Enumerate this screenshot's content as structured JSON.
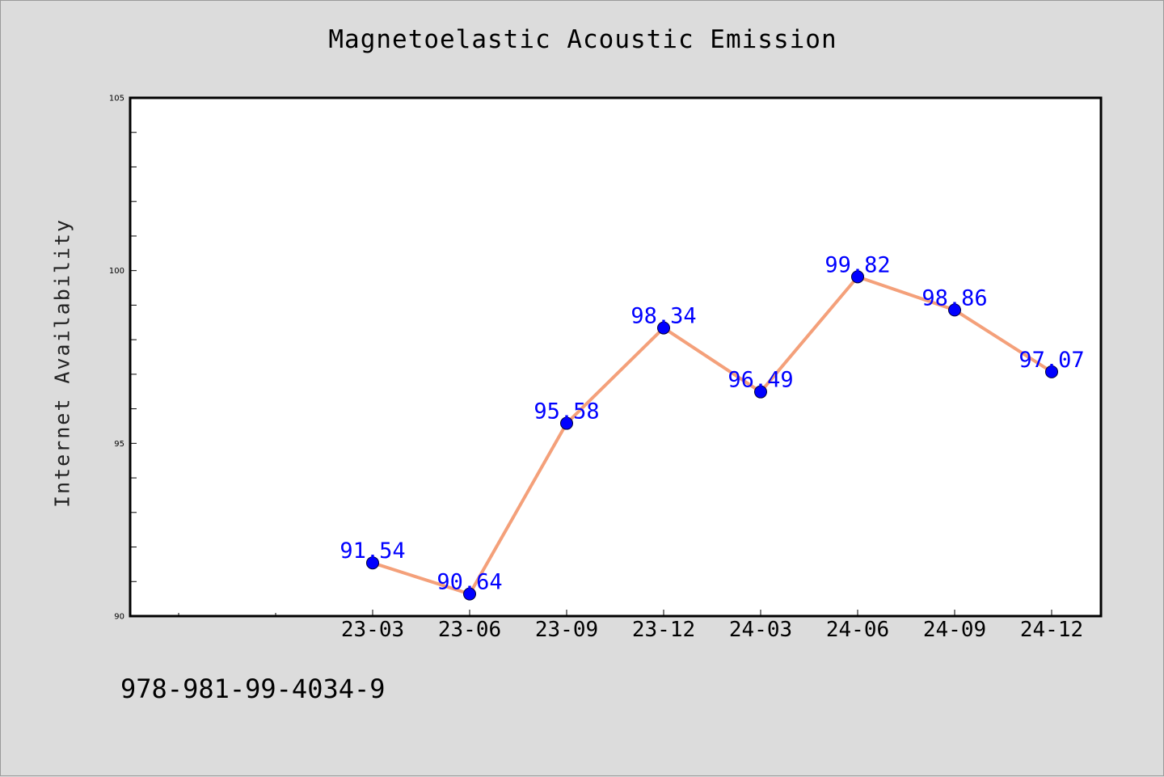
{
  "chart_data": {
    "type": "line",
    "title": "Magnetoelastic Acoustic Emission",
    "xlabel": "",
    "ylabel": "Internet Availability",
    "categories": [
      "23-03",
      "23-06",
      "23-09",
      "23-12",
      "24-03",
      "24-06",
      "24-09",
      "24-12"
    ],
    "series": [
      {
        "values": [
          91.54,
          90.64,
          95.58,
          98.34,
          96.49,
          99.82,
          98.86,
          97.07
        ],
        "labels": [
          "91.54",
          "90.64",
          "95.58",
          "98.34",
          "96.49",
          "99.82",
          "98.86",
          "97.07"
        ],
        "color": "#f4a07a",
        "marker_color": "#0000ff"
      }
    ],
    "ylim": [
      90,
      105
    ],
    "yticks": [
      "90",
      "95",
      "100",
      "105"
    ],
    "grid": false,
    "legend": "none"
  },
  "footer": {
    "isbn": "978-981-99-4034-9"
  },
  "colors": {
    "background": "#dcdcdc",
    "plot_area": "#ffffff",
    "line": "#f4a07a",
    "marker": "#0000ff",
    "data_label": "#0000ff"
  }
}
